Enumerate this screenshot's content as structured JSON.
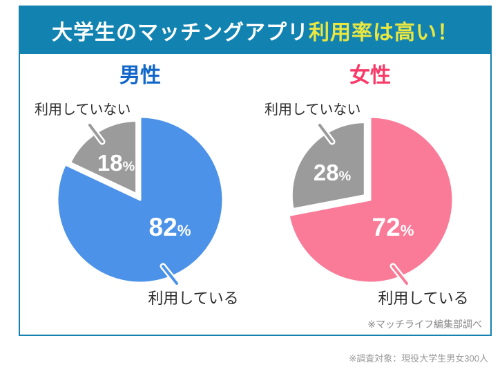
{
  "palette": {
    "header_bg": "#1283b1",
    "header_text": "#ffffff",
    "header_accent_yellow": "#e9e740",
    "card_border": "#1481af",
    "male_title_blue": "#1166c9",
    "female_title_pink": "#f93a68",
    "male_pie_blue": "#4b92e8",
    "female_pie_pink": "#f97b98",
    "nonuser_gray": "#9b9b9b",
    "note_gray": "#888888"
  },
  "header": {
    "title_main": "大学生のマッチングアプリ",
    "title_accent": "利用率は高い！"
  },
  "units": {
    "percent": "%"
  },
  "chart_data": [
    {
      "type": "pie",
      "title": "男性",
      "title_color": "#1166c9",
      "labels": [
        "利用している",
        "利用していない"
      ],
      "values": [
        82,
        18
      ],
      "colors": [
        "#4b92e8",
        "#9b9b9b"
      ],
      "start_angle": "12-oclock",
      "direction": "clockwise",
      "exploded_slice": "利用していない",
      "legend_position": "callout-labels"
    },
    {
      "type": "pie",
      "title": "女性",
      "title_color": "#f93a68",
      "labels": [
        "利用している",
        "利用していない"
      ],
      "values": [
        72,
        28
      ],
      "colors": [
        "#f97b98",
        "#9b9b9b"
      ],
      "start_angle": "12-oclock",
      "direction": "clockwise",
      "exploded_slice": "利用していない",
      "legend_position": "callout-labels"
    }
  ],
  "footer": {
    "source_note": "※マッチライフ編集部調べ"
  },
  "caption": {
    "survey_note": "※調査対象：現役大学生男女300人"
  }
}
